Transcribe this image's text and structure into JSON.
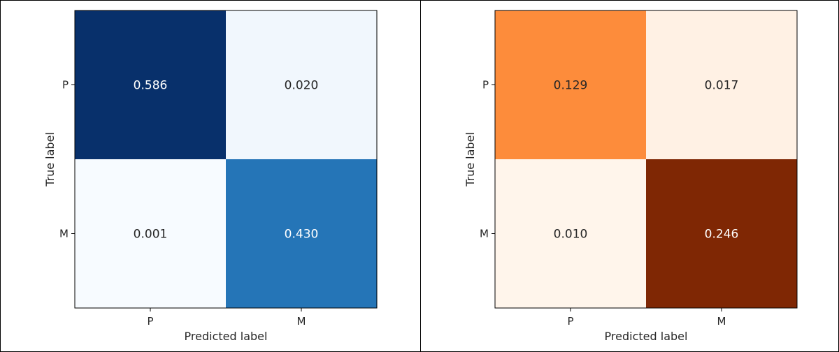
{
  "chart_data": [
    {
      "type": "heatmap",
      "title": "",
      "xlabel": "Predicted label",
      "ylabel": "True label",
      "x_categories": [
        "P",
        "M"
      ],
      "y_categories": [
        "P",
        "M"
      ],
      "values": [
        [
          0.586,
          0.02
        ],
        [
          0.001,
          0.43
        ]
      ],
      "value_labels": [
        [
          "0.586",
          "0.020"
        ],
        [
          "0.001",
          "0.430"
        ]
      ],
      "colormap": "Blues",
      "colors": {
        "low": "#f7fbff",
        "high": "#08306b",
        "text_light": "#ffffff",
        "text_dark": "#262626"
      }
    },
    {
      "type": "heatmap",
      "title": "",
      "xlabel": "Predicted label",
      "ylabel": "True label",
      "x_categories": [
        "P",
        "M"
      ],
      "y_categories": [
        "P",
        "M"
      ],
      "values": [
        [
          0.129,
          0.017
        ],
        [
          0.01,
          0.246
        ]
      ],
      "value_labels": [
        [
          "0.129",
          "0.017"
        ],
        [
          "0.010",
          "0.246"
        ]
      ],
      "colormap": "Oranges",
      "colors": {
        "low": "#fff5eb",
        "high": "#7f2704",
        "text_light": "#ffffff",
        "text_dark": "#262626"
      }
    }
  ]
}
